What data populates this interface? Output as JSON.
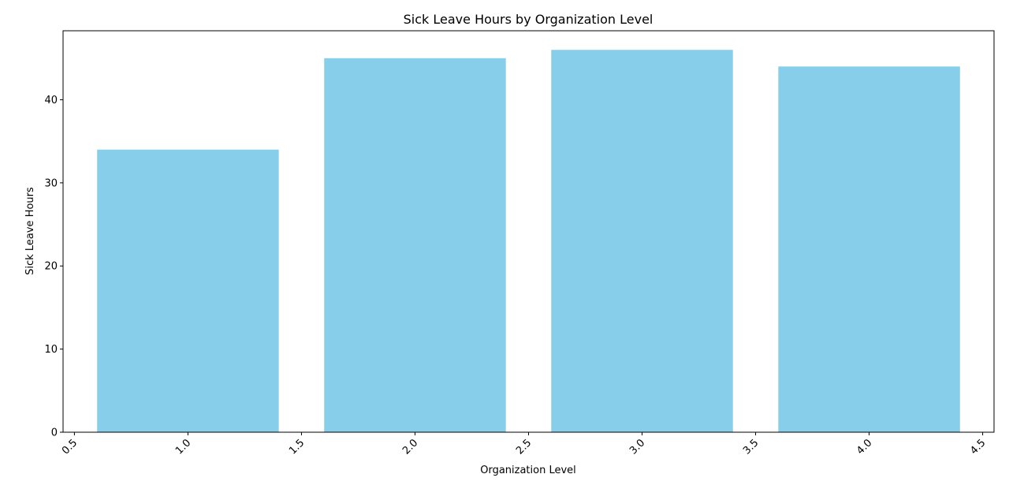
{
  "chart_data": {
    "type": "bar",
    "title": "Sick Leave Hours by Organization Level",
    "xlabel": "Organization Level",
    "ylabel": "Sick Leave Hours",
    "x": [
      1,
      2,
      3,
      4
    ],
    "values": [
      34,
      45,
      46,
      44
    ],
    "bar_width": 0.8,
    "xlim": [
      0.45,
      4.55
    ],
    "ylim": [
      0,
      48.3
    ],
    "x_ticks": [
      0.5,
      1.0,
      1.5,
      2.0,
      2.5,
      3.0,
      3.5,
      4.0,
      4.5
    ],
    "x_tick_labels": [
      "0.5",
      "1.0",
      "1.5",
      "2.0",
      "2.5",
      "3.0",
      "3.5",
      "4.0",
      "4.5"
    ],
    "y_ticks": [
      0,
      10,
      20,
      30,
      40
    ],
    "y_tick_labels": [
      "0",
      "10",
      "20",
      "30",
      "40"
    ],
    "x_tick_rotation_deg": 45,
    "grid": false,
    "legend": "none",
    "colors": {
      "bar": "#87CEEB"
    }
  }
}
